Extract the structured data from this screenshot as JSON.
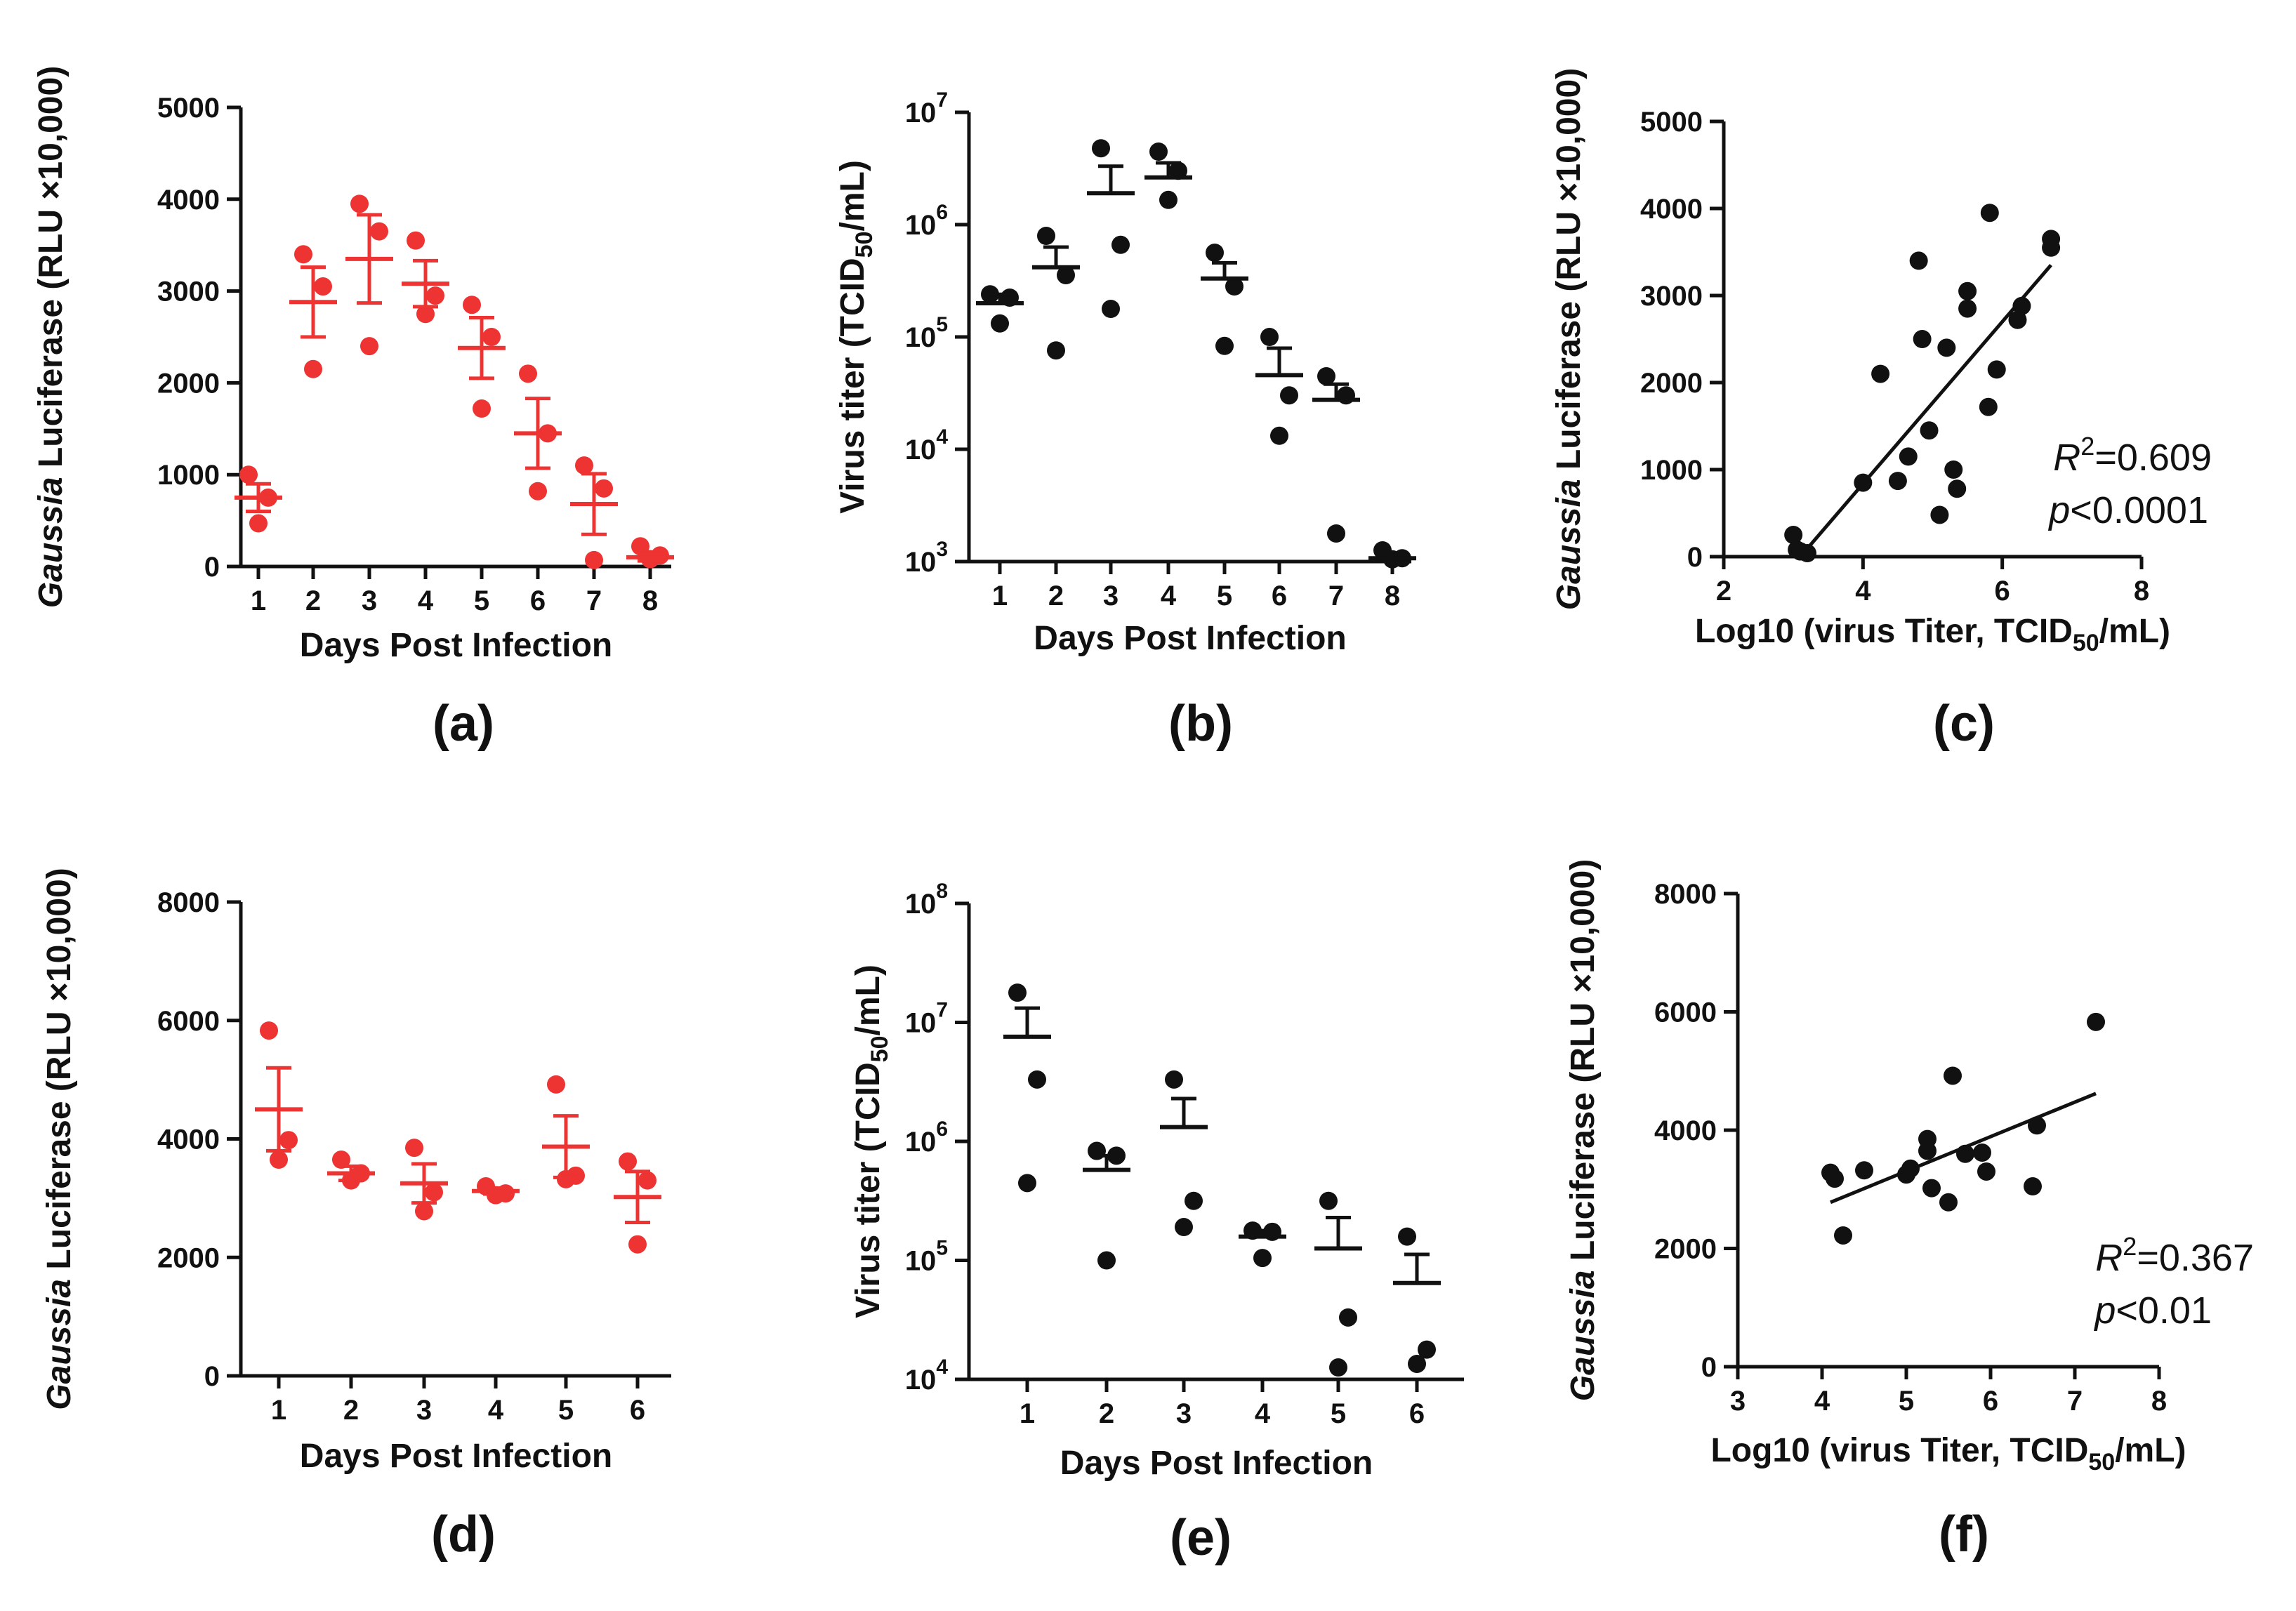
{
  "figure": {
    "panels": [
      {
        "id": "a",
        "panel_label": "(a)",
        "type": "scatter",
        "color": "#ee3333",
        "xlabel": "Days Post Infection",
        "ylabel_italic": "Gaussia",
        "ylabel_rest": " Luciferase (RLU ×10,000)",
        "yscale": "linear",
        "ylim": [
          0,
          5000
        ],
        "yticks": [
          0,
          1000,
          2000,
          3000,
          4000,
          5000
        ],
        "ytick_labels": [
          "0",
          "1000",
          "2000",
          "3000",
          "4000",
          "5000"
        ],
        "xlim": [
          0.5,
          8.5
        ],
        "xticks": [
          1,
          2,
          3,
          4,
          5,
          6,
          7,
          8
        ],
        "xtick_labels": [
          "1",
          "2",
          "3",
          "4",
          "5",
          "6",
          "7",
          "8"
        ],
        "groups": [
          {
            "x": 1,
            "points": [
              1000,
              750,
              470
            ],
            "mean": 750,
            "sem": 150
          },
          {
            "x": 2,
            "points": [
              3400,
              3050,
              2150
            ],
            "mean": 2880,
            "sem": 380
          },
          {
            "x": 3,
            "points": [
              3950,
              3650,
              2400
            ],
            "mean": 3350,
            "sem": 480
          },
          {
            "x": 4,
            "points": [
              3550,
              2950,
              2750
            ],
            "mean": 3080,
            "sem": 250
          },
          {
            "x": 5,
            "points": [
              2850,
              2500,
              1720
            ],
            "mean": 2380,
            "sem": 330
          },
          {
            "x": 6,
            "points": [
              2100,
              1450,
              820
            ],
            "mean": 1450,
            "sem": 380
          },
          {
            "x": 7,
            "points": [
              1100,
              850,
              70
            ],
            "mean": 680,
            "sem": 330
          },
          {
            "x": 8,
            "points": [
              220,
              120,
              80
            ],
            "mean": 100,
            "sem": 40
          }
        ]
      },
      {
        "id": "b",
        "panel_label": "(b)",
        "type": "scatter",
        "color": "#111111",
        "xlabel": "Days Post Infection",
        "ylabel_main": "Virus titer (TCID",
        "ylabel_sub": "50",
        "ylabel_end": "/mL)",
        "yscale": "log",
        "ylim_log10": [
          3,
          7
        ],
        "yticks_log10": [
          3,
          4,
          5,
          6,
          7
        ],
        "ytick_base": "10",
        "ytick_exps": [
          "3",
          "4",
          "5",
          "6",
          "7"
        ],
        "xlim": [
          0.5,
          8.5
        ],
        "xticks": [
          1,
          2,
          3,
          4,
          5,
          6,
          7,
          8
        ],
        "xtick_labels": [
          "1",
          "2",
          "3",
          "4",
          "5",
          "6",
          "7",
          "8"
        ],
        "groups": [
          {
            "x": 1,
            "points_log10": [
              5.38,
              5.35,
              5.12
            ],
            "mean_log10": 5.3,
            "sem_top_log10": 5.38
          },
          {
            "x": 2,
            "points_log10": [
              5.9,
              5.55,
              4.88
            ],
            "mean_log10": 5.62,
            "sem_top_log10": 5.8
          },
          {
            "x": 3,
            "points_log10": [
              6.68,
              5.82,
              5.25
            ],
            "mean_log10": 6.28,
            "sem_top_log10": 6.52
          },
          {
            "x": 4,
            "points_log10": [
              6.65,
              6.48,
              6.22
            ],
            "mean_log10": 6.42,
            "sem_top_log10": 6.55
          },
          {
            "x": 5,
            "points_log10": [
              5.75,
              5.45,
              4.92
            ],
            "mean_log10": 5.52,
            "sem_top_log10": 5.66
          },
          {
            "x": 6,
            "points_log10": [
              5.0,
              4.48,
              4.12
            ],
            "mean_log10": 4.66,
            "sem_top_log10": 4.9
          },
          {
            "x": 7,
            "points_log10": [
              4.65,
              4.48,
              3.25
            ],
            "mean_log10": 4.44,
            "sem_top_log10": 4.58
          },
          {
            "x": 8,
            "points_log10": [
              3.1,
              3.03,
              3.02
            ],
            "mean_log10": 3.03,
            "sem_top_log10": 3.06
          }
        ]
      },
      {
        "id": "c",
        "panel_label": "(c)",
        "type": "scatter",
        "color": "#111111",
        "xlabel_main": "Log10 (virus Titer, TCID",
        "xlabel_sub": "50",
        "xlabel_end": "/mL)",
        "ylabel_italic": "Gaussia",
        "ylabel_rest": " Luciferase (RLU ×10,000)",
        "xlim": [
          2,
          8
        ],
        "xticks": [
          2,
          4,
          6,
          8
        ],
        "xtick_labels": [
          "2",
          "4",
          "6",
          "8"
        ],
        "ylim": [
          0,
          5000
        ],
        "yticks": [
          0,
          1000,
          2000,
          3000,
          4000,
          5000
        ],
        "ytick_labels": [
          "0",
          "1000",
          "2000",
          "3000",
          "4000",
          "5000"
        ],
        "points": [
          [
            3.0,
            250
          ],
          [
            3.05,
            80
          ],
          [
            3.1,
            60
          ],
          [
            3.2,
            40
          ],
          [
            4.0,
            850
          ],
          [
            4.25,
            2100
          ],
          [
            4.5,
            870
          ],
          [
            4.65,
            1150
          ],
          [
            4.8,
            3400
          ],
          [
            4.85,
            2500
          ],
          [
            4.95,
            1450
          ],
          [
            5.1,
            480
          ],
          [
            5.2,
            2400
          ],
          [
            5.3,
            1000
          ],
          [
            5.35,
            780
          ],
          [
            5.5,
            3050
          ],
          [
            5.5,
            2850
          ],
          [
            5.8,
            1720
          ],
          [
            5.82,
            3950
          ],
          [
            5.92,
            2150
          ],
          [
            6.22,
            2720
          ],
          [
            6.28,
            2880
          ],
          [
            6.7,
            3650
          ],
          [
            6.7,
            3550
          ]
        ],
        "fit": {
          "x": [
            3.1,
            6.7
          ],
          "y": [
            0,
            3350
          ]
        },
        "r2_label": "=0.609",
        "p_label": "<0.0001"
      },
      {
        "id": "d",
        "panel_label": "(d)",
        "type": "scatter",
        "color": "#ee3333",
        "xlabel": "Days Post Infection",
        "ylabel_italic": "Gaussia",
        "ylabel_rest": " Luciferase (RLU ×10,000)",
        "yscale": "linear",
        "ylim": [
          0,
          8000
        ],
        "yticks": [
          0,
          2000,
          4000,
          6000,
          8000
        ],
        "ytick_labels": [
          "0",
          "2000",
          "4000",
          "6000",
          "8000"
        ],
        "xlim": [
          0.5,
          6.5
        ],
        "xticks": [
          1,
          2,
          3,
          4,
          5,
          6
        ],
        "xtick_labels": [
          "1",
          "2",
          "3",
          "4",
          "5",
          "6"
        ],
        "groups": [
          {
            "x": 1,
            "points": [
              5830,
              3980,
              3650
            ],
            "mean": 4500,
            "sem": 700
          },
          {
            "x": 2,
            "points": [
              3650,
              3420,
              3300
            ],
            "mean": 3420,
            "sem": 120
          },
          {
            "x": 3,
            "points": [
              3850,
              3100,
              2780
            ],
            "mean": 3250,
            "sem": 330
          },
          {
            "x": 4,
            "points": [
              3200,
              3080,
              3050
            ],
            "mean": 3120,
            "sem": 50
          },
          {
            "x": 5,
            "points": [
              4920,
              3380,
              3320
            ],
            "mean": 3870,
            "sem": 520
          },
          {
            "x": 6,
            "points": [
              3620,
              3300,
              2220
            ],
            "mean": 3020,
            "sem": 430
          }
        ]
      },
      {
        "id": "e",
        "panel_label": "(e)",
        "type": "scatter",
        "color": "#111111",
        "xlabel": "Days Post Infection",
        "ylabel_main": "Virus titer (TCID",
        "ylabel_sub": "50",
        "ylabel_end": "/mL)",
        "yscale": "log",
        "ylim_log10": [
          4,
          8
        ],
        "yticks_log10": [
          4,
          5,
          6,
          7,
          8
        ],
        "ytick_base": "10",
        "ytick_exps": [
          "4",
          "5",
          "6",
          "7",
          "8"
        ],
        "xlim": [
          0.5,
          6.5
        ],
        "xticks": [
          1,
          2,
          3,
          4,
          5,
          6
        ],
        "xtick_labels": [
          "1",
          "2",
          "3",
          "4",
          "5",
          "6"
        ],
        "groups": [
          {
            "x": 1,
            "points_log10": [
              7.25,
              6.52,
              5.65
            ],
            "mean_log10": 6.88,
            "sem_top_log10": 7.12
          },
          {
            "x": 2,
            "points_log10": [
              5.92,
              5.88,
              5.0
            ],
            "mean_log10": 5.76,
            "sem_top_log10": 5.88
          },
          {
            "x": 3,
            "points_log10": [
              6.52,
              5.5,
              5.28
            ],
            "mean_log10": 6.12,
            "sem_top_log10": 6.36
          },
          {
            "x": 4,
            "points_log10": [
              5.25,
              5.24,
              5.02
            ],
            "mean_log10": 5.2,
            "sem_top_log10": 5.25
          },
          {
            "x": 5,
            "points_log10": [
              5.5,
              4.52,
              4.1
            ],
            "mean_log10": 5.1,
            "sem_top_log10": 5.36
          },
          {
            "x": 6,
            "points_log10": [
              5.2,
              4.25,
              4.13
            ],
            "mean_log10": 4.81,
            "sem_top_log10": 5.05
          }
        ]
      },
      {
        "id": "f",
        "panel_label": "(f)",
        "type": "scatter",
        "color": "#111111",
        "xlabel_main": "Log10 (virus Titer, TCID",
        "xlabel_sub": "50",
        "xlabel_end": "/mL)",
        "ylabel_italic": "Gaussia",
        "ylabel_rest": " Luciferase (RLU ×10,000)",
        "xlim": [
          3,
          8
        ],
        "xticks": [
          3,
          4,
          5,
          6,
          7,
          8
        ],
        "xtick_labels": [
          "3",
          "4",
          "5",
          "6",
          "7",
          "8"
        ],
        "ylim": [
          0,
          8000
        ],
        "yticks": [
          0,
          2000,
          4000,
          6000,
          8000
        ],
        "ytick_labels": [
          "0",
          "2000",
          "4000",
          "6000",
          "8000"
        ],
        "points": [
          [
            4.1,
            3280
          ],
          [
            4.15,
            3180
          ],
          [
            4.25,
            2220
          ],
          [
            4.5,
            3320
          ],
          [
            5.0,
            3250
          ],
          [
            5.05,
            3350
          ],
          [
            5.25,
            3650
          ],
          [
            5.25,
            3850
          ],
          [
            5.3,
            3020
          ],
          [
            5.5,
            2780
          ],
          [
            5.55,
            4920
          ],
          [
            5.7,
            3600
          ],
          [
            5.9,
            3620
          ],
          [
            5.95,
            3300
          ],
          [
            6.5,
            3050
          ],
          [
            6.55,
            4080
          ],
          [
            7.25,
            5830
          ]
        ],
        "fit": {
          "x": [
            4.1,
            7.25
          ],
          "y": [
            2780,
            4620
          ]
        },
        "r2_label": "=0.367",
        "p_label": "<0.01"
      }
    ],
    "annotation_symbols": {
      "r": "R",
      "r_sup": "2",
      "p": "p"
    }
  }
}
